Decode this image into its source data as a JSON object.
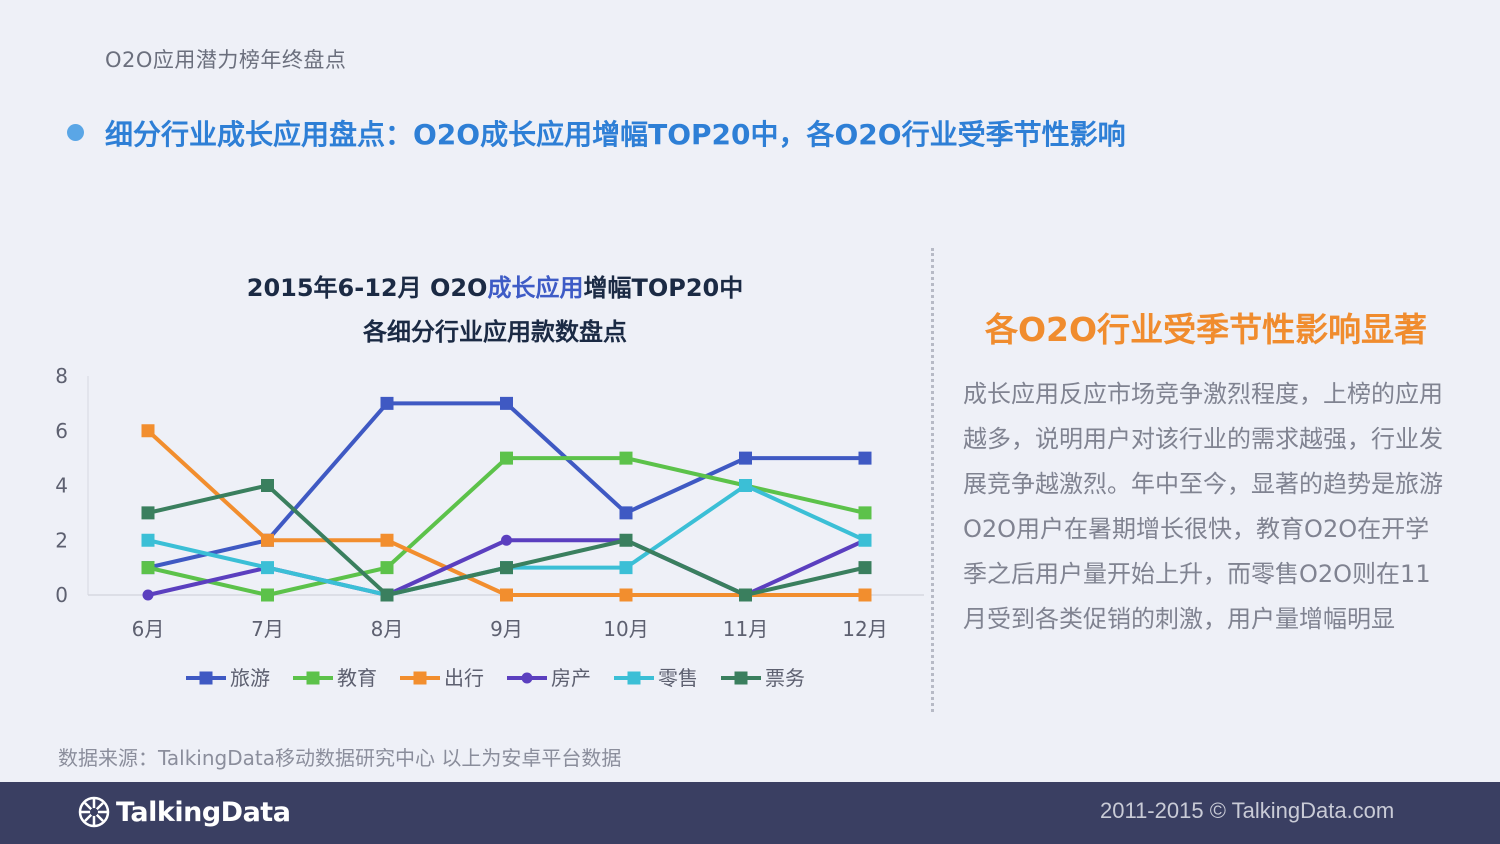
{
  "header": {
    "section": "O2O应用潜力榜年终盘点"
  },
  "main_title": "细分行业成长应用盘点：O2O成长应用增幅TOP20中，各O2O行业受季节性影响",
  "chart_title": {
    "line1_prefix": "2015年6-12月 O2O",
    "line1_highlight": "成长应用",
    "line1_suffix": "增幅TOP20中",
    "line2": "各细分行业应用款数盘点"
  },
  "chart_data": {
    "type": "line",
    "categories": [
      "6月",
      "7月",
      "8月",
      "9月",
      "10月",
      "11月",
      "12月"
    ],
    "y_ticks": [
      "0",
      "2",
      "4",
      "6",
      "8"
    ],
    "ylim": [
      0,
      8
    ],
    "legend_position": "bottom",
    "grid": false,
    "series": [
      {
        "name": "旅游",
        "color": "#3f59c3",
        "marker": "square",
        "values": [
          1,
          2,
          7,
          7,
          3,
          5,
          5
        ]
      },
      {
        "name": "教育",
        "color": "#5cc24a",
        "marker": "square",
        "values": [
          1,
          0,
          1,
          5,
          5,
          4,
          3
        ]
      },
      {
        "name": "出行",
        "color": "#f28e2e",
        "marker": "square",
        "values": [
          6,
          2,
          2,
          0,
          0,
          0,
          0
        ]
      },
      {
        "name": "房产",
        "color": "#5b3fbf",
        "marker": "circle",
        "values": [
          0,
          1,
          0,
          2,
          2,
          0,
          2
        ]
      },
      {
        "name": "零售",
        "color": "#3bbfd6",
        "marker": "square",
        "values": [
          2,
          1,
          0,
          1,
          1,
          4,
          2
        ]
      },
      {
        "name": "票务",
        "color": "#3a7f5e",
        "marker": "square",
        "values": [
          3,
          4,
          0,
          1,
          2,
          0,
          1
        ]
      }
    ]
  },
  "side": {
    "title": "各O2O行业受季节性影响显著",
    "body": "成长应用反应市场竞争激烈程度，上榜的应用越多，说明用户对该行业的需求越强，行业发展竞争越激烈。年中至今，显著的趋势是旅游O2O用户在暑期增长很快，教育O2O在开学季之后用户量开始上升，而零售O2O则在11月受到各类促销的刺激，用户量增幅明显"
  },
  "source": "数据来源：TalkingData移动数据研究中心   以上为安卓平台数据",
  "footer": {
    "logo_text": "TalkingData",
    "copyright": "2011-2015 © TalkingData.com"
  },
  "colors": {
    "footer_bg": "#3a3f62",
    "title_blue": "#2e7fd6",
    "side_orange": "#f08c2e"
  }
}
